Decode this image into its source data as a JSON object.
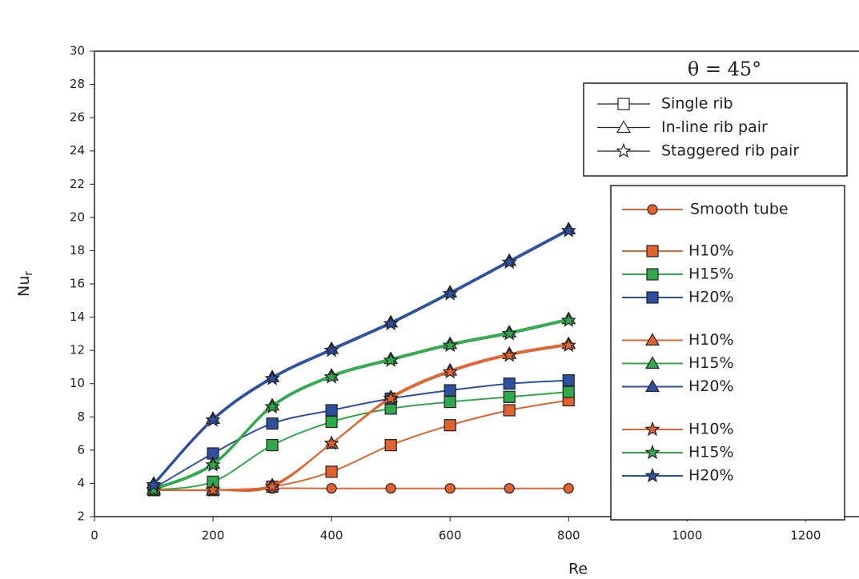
{
  "chart_data": {
    "type": "line",
    "annotation": "θ = 45°",
    "xlabel": "Re",
    "ylabel": {
      "text": "Nu",
      "subscript": "r"
    },
    "xlim": [
      0,
      1290
    ],
    "xticks": [
      0,
      200,
      400,
      600,
      800,
      1000,
      1200
    ],
    "ylim": [
      2,
      30
    ],
    "yticks": [
      2,
      4,
      6,
      8,
      10,
      12,
      14,
      16,
      18,
      20,
      22,
      24,
      26,
      28,
      30
    ],
    "x": [
      100,
      200,
      300,
      400,
      500,
      600,
      700,
      800
    ],
    "marker_legend": [
      {
        "label": "Single rib",
        "marker": "square"
      },
      {
        "label": "In-line rib pair",
        "marker": "triangle"
      },
      {
        "label": "Staggered rib pair",
        "marker": "star"
      }
    ],
    "series": [
      {
        "name": "Smooth tube",
        "marker": "circle",
        "color": "#e0622e",
        "values": [
          3.6,
          3.6,
          3.7,
          3.7,
          3.7,
          3.7,
          3.7,
          3.7
        ]
      },
      {
        "name": "H10%",
        "marker": "square",
        "color": "#e0622e",
        "values": [
          3.6,
          3.6,
          3.8,
          4.7,
          6.3,
          7.5,
          8.4,
          9.0
        ]
      },
      {
        "name": "H15%",
        "marker": "square",
        "color": "#2ea84a",
        "values": [
          3.6,
          4.1,
          6.3,
          7.7,
          8.5,
          8.9,
          9.2,
          9.5
        ]
      },
      {
        "name": "H20%",
        "marker": "square",
        "color": "#2e4fa0",
        "values": [
          3.7,
          5.8,
          7.6,
          8.4,
          9.1,
          9.6,
          10.0,
          10.2
        ]
      },
      {
        "name": "H10%",
        "marker": "triangle",
        "color": "#e0622e",
        "values": [
          3.6,
          3.6,
          3.9,
          6.4,
          9.2,
          10.8,
          11.8,
          12.4
        ]
      },
      {
        "name": "H15%",
        "marker": "triangle",
        "color": "#2ea84a",
        "values": [
          3.7,
          5.2,
          8.7,
          10.5,
          11.5,
          12.4,
          13.1,
          13.9
        ]
      },
      {
        "name": "H20%",
        "marker": "triangle",
        "color": "#2e4fa0",
        "values": [
          4.0,
          7.9,
          10.4,
          12.1,
          13.7,
          15.5,
          17.4,
          19.3
        ]
      },
      {
        "name": "H10%",
        "marker": "star",
        "color": "#e0622e",
        "values": [
          3.6,
          3.6,
          3.8,
          6.4,
          9.1,
          10.7,
          11.7,
          12.3
        ]
      },
      {
        "name": "H15%",
        "marker": "star",
        "color": "#2ea84a",
        "values": [
          3.6,
          5.1,
          8.6,
          10.4,
          11.4,
          12.3,
          13.0,
          13.8
        ]
      },
      {
        "name": "H20%",
        "marker": "star",
        "color": "#2e4fa0",
        "values": [
          3.9,
          7.8,
          10.3,
          12.0,
          13.6,
          15.4,
          17.3,
          19.2
        ]
      }
    ]
  }
}
